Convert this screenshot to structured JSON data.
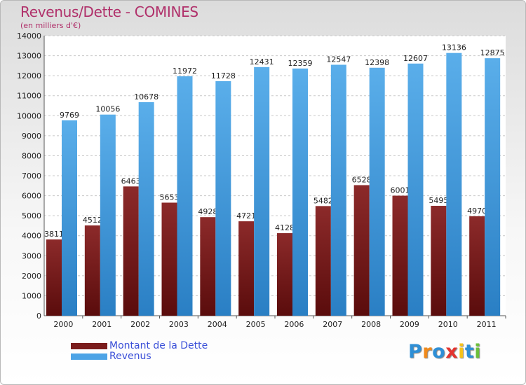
{
  "header": {
    "title": "Revenus/Dette - COMINES",
    "subtitle": "(en milliers d'€)"
  },
  "colors": {
    "title": "#b0306a",
    "dette": "#7a1c1c",
    "revenus": "#4ca3e6",
    "legend_text": "#3a4fd8"
  },
  "chart_data": {
    "type": "bar",
    "title": "Revenus/Dette - COMINES",
    "subtitle": "(en milliers d'€)",
    "categories": [
      "2000",
      "2001",
      "2002",
      "2003",
      "2004",
      "2005",
      "2006",
      "2007",
      "2008",
      "2009",
      "2010",
      "2011"
    ],
    "series": [
      {
        "name": "Montant de la Dette",
        "color": "#7a1c1c",
        "values": [
          3811,
          4512,
          6463,
          5653,
          4928,
          4721,
          4128,
          5482,
          6528,
          6001,
          5495,
          4970
        ]
      },
      {
        "name": "Revenus",
        "color": "#4ca3e6",
        "values": [
          9769,
          10056,
          10678,
          11972,
          11728,
          12431,
          12359,
          12547,
          12398,
          12607,
          13136,
          12875
        ]
      }
    ],
    "ylim": [
      0,
      14000
    ],
    "yticks": [
      0,
      1000,
      2000,
      3000,
      4000,
      5000,
      6000,
      7000,
      8000,
      9000,
      10000,
      11000,
      12000,
      13000,
      14000
    ],
    "grid": true,
    "legend": "bottom-left"
  },
  "legend": {
    "items": [
      {
        "label": "Montant de la Dette",
        "color": "#7a1c1c"
      },
      {
        "label": "Revenus",
        "color": "#4ca3e6"
      }
    ]
  },
  "logo": {
    "text": "Proxiti",
    "letters": [
      {
        "ch": "P",
        "color": "#2e8fd6"
      },
      {
        "ch": "r",
        "color": "#f08a1c"
      },
      {
        "ch": "o",
        "color": "#2e8fd6"
      },
      {
        "ch": "x",
        "color": "#e3342f"
      },
      {
        "ch": "i",
        "color": "#f6c21a"
      },
      {
        "ch": "t",
        "color": "#2e8fd6"
      },
      {
        "ch": "i",
        "color": "#6cbf3a"
      }
    ]
  }
}
